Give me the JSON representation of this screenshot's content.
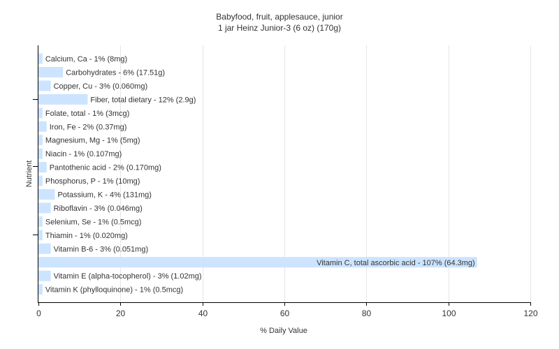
{
  "chart_data": {
    "type": "bar",
    "orientation": "horizontal",
    "title": "Babyfood, fruit, applesauce, junior",
    "subtitle": "1 jar Heinz Junior-3 (6 oz) (170g)",
    "xlabel": "% Daily Value",
    "ylabel": "Nutrient",
    "xlim": [
      0,
      120
    ],
    "xticks": [
      0,
      20,
      40,
      60,
      80,
      100,
      120
    ],
    "grid": true,
    "bar_color": "#cce4ff",
    "categories": [
      "Calcium, Ca - 1% (8mg)",
      "Carbohydrates - 6% (17.51g)",
      "Copper, Cu - 3% (0.060mg)",
      "Fiber, total dietary - 12% (2.9g)",
      "Folate, total - 1% (3mcg)",
      "Iron, Fe - 2% (0.37mg)",
      "Magnesium, Mg - 1% (5mg)",
      "Niacin - 1% (0.107mg)",
      "Pantothenic acid - 2% (0.170mg)",
      "Phosphorus, P - 1% (10mg)",
      "Potassium, K - 4% (131mg)",
      "Riboflavin - 3% (0.046mg)",
      "Selenium, Se - 1% (0.5mcg)",
      "Thiamin - 1% (0.020mg)",
      "Vitamin B-6 - 3% (0.051mg)",
      "Vitamin C, total ascorbic acid - 107% (64.3mg)",
      "Vitamin E (alpha-tocopherol) - 3% (1.02mg)",
      "Vitamin K (phylloquinone) - 1% (0.5mcg)"
    ],
    "values": [
      1,
      6,
      3,
      12,
      1,
      2,
      1,
      1,
      2,
      1,
      4,
      3,
      1,
      1,
      3,
      107,
      3,
      1
    ]
  }
}
